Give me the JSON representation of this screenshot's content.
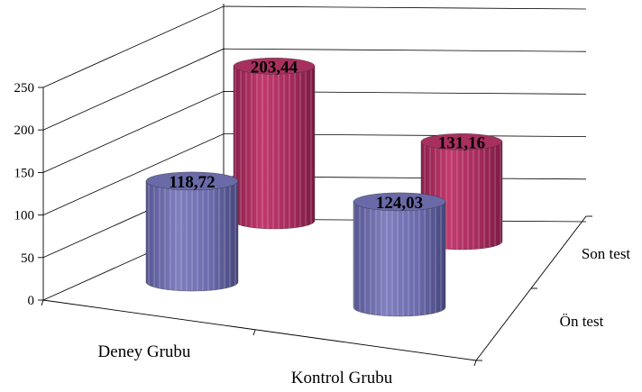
{
  "chart_data": {
    "type": "bar",
    "style": "3d-cylinder",
    "title": "",
    "xlabel": "",
    "ylabel": "",
    "categories": [
      "Deney Grubu",
      "Kontrol Grubu"
    ],
    "series": [
      {
        "name": "Ön test",
        "values": [
          118.72,
          124.03
        ],
        "labels": [
          "118,72",
          "124,03"
        ],
        "color": "#6f6fb0"
      },
      {
        "name": "Son test",
        "values": [
          203.44,
          131.16
        ],
        "labels": [
          "203,44",
          "131,16"
        ],
        "color": "#b03060"
      }
    ],
    "ylim": [
      0,
      250
    ],
    "yticks": [
      "0",
      "50",
      "100",
      "150",
      "200",
      "250"
    ],
    "grid": true,
    "legend": "none"
  }
}
